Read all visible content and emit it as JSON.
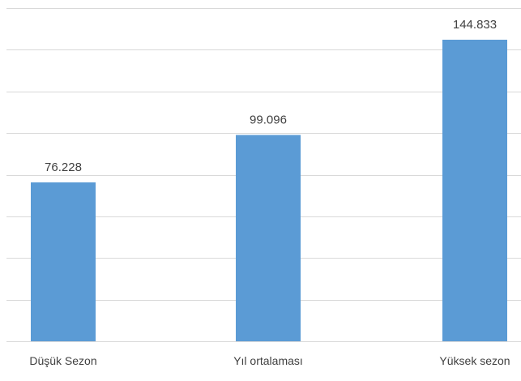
{
  "chart_data": {
    "type": "bar",
    "categories": [
      "Düşük Sezon",
      "Yıl ortalaması",
      "Yüksek sezon"
    ],
    "values": [
      76.228,
      99.096,
      144.833
    ],
    "value_labels": [
      "76.228",
      "99.096",
      "144.833"
    ],
    "ylim": [
      0,
      160
    ],
    "y_gridline_step": 20,
    "grid": true,
    "legend": "none",
    "colors": {
      "bar": "#5b9bd5",
      "grid": "#d9d9d9",
      "text": "#404040"
    }
  }
}
